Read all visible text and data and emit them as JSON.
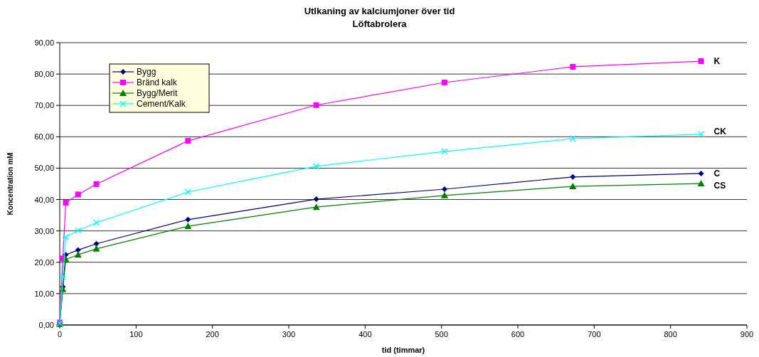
{
  "chart_data": {
    "type": "line",
    "title": "Utlkaning av kalciumjoner över tid",
    "subtitle": "Löftabrolera",
    "xlabel": "tid (timmar)",
    "ylabel": "Koncentration mM",
    "x": [
      0,
      4,
      8,
      24,
      48,
      168,
      336,
      504,
      672,
      840
    ],
    "series": [
      {
        "name": "Bygg",
        "color": "#000080",
        "marker": "diamond",
        "values": [
          0.8,
          12.2,
          22.4,
          23.9,
          25.9,
          33.6,
          40.1,
          43.3,
          47.2,
          48.3
        ]
      },
      {
        "name": "Bränd kalk",
        "color": "#ff00ff",
        "marker": "square",
        "values": [
          0.8,
          21.2,
          39.0,
          41.6,
          44.9,
          58.7,
          70.1,
          77.3,
          82.3,
          84.1
        ]
      },
      {
        "name": "Bygg/Merit",
        "color": "#008000",
        "marker": "triangle",
        "values": [
          0.3,
          11.4,
          20.9,
          22.4,
          24.3,
          31.5,
          37.6,
          41.3,
          44.2,
          45.1
        ]
      },
      {
        "name": "Cement/Kalk",
        "color": "#00ffff",
        "marker": "cross",
        "values": [
          0.5,
          15.3,
          28.0,
          30.1,
          32.6,
          42.4,
          50.6,
          55.3,
          59.4,
          60.8
        ]
      }
    ],
    "xlim": [
      0,
      900
    ],
    "xticks": [
      0,
      100,
      200,
      300,
      400,
      500,
      600,
      700,
      800,
      900
    ],
    "ylim": [
      0,
      90
    ],
    "yticks": [
      {
        "value": 0,
        "label": "0,00"
      },
      {
        "value": 10,
        "label": "10,00"
      },
      {
        "value": 20,
        "label": "20,00"
      },
      {
        "value": 30,
        "label": "30,00"
      },
      {
        "value": 40,
        "label": "40,00"
      },
      {
        "value": 50,
        "label": "50,00"
      },
      {
        "value": 60,
        "label": "60,00"
      },
      {
        "value": 70,
        "label": "70,00"
      },
      {
        "value": 80,
        "label": "80,00"
      },
      {
        "value": 90,
        "label": "90,00"
      }
    ],
    "grid": "y",
    "legend": "top left",
    "annotations": [
      "C",
      "K",
      "CS",
      "CK"
    ]
  }
}
